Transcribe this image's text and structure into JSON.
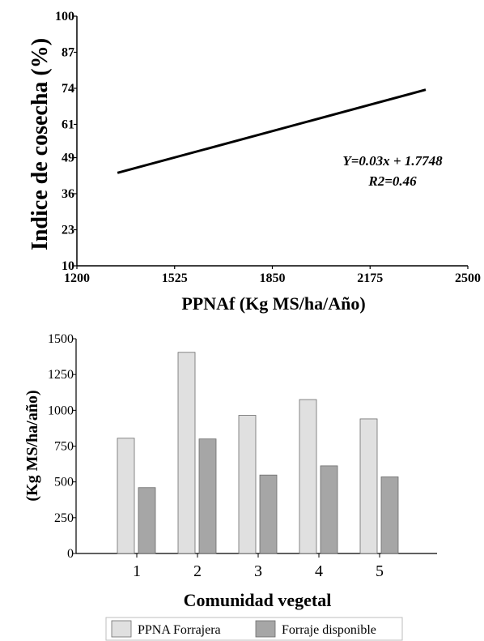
{
  "chart_data": [
    {
      "type": "line",
      "title": "",
      "xlabel": "PPNAf (Kg MS/ha/Año)",
      "ylabel": "Indice de cosecha (%)",
      "xlim": [
        1200,
        2500
      ],
      "ylim": [
        10,
        100
      ],
      "xticks": [
        "1200",
        "1525",
        "1850",
        "2175",
        "2500"
      ],
      "yticks": [
        "100",
        "87",
        "74",
        "61",
        "49",
        "36",
        "23",
        "10"
      ],
      "series": [
        {
          "x": [
            1335,
            2360
          ],
          "y": [
            43.5,
            73.5
          ]
        }
      ],
      "annotations": [
        "Y=0.03x + 1.7748",
        "R2=0.46"
      ],
      "grid": false
    },
    {
      "type": "bar",
      "title": "",
      "xlabel": "Comunidad vegetal",
      "ylabel": "(Kg MS/ha/año)",
      "ylim": [
        0,
        1500
      ],
      "yticks": [
        "0",
        "250",
        "500",
        "750",
        "1000",
        "1250",
        "1500"
      ],
      "categories": [
        "1",
        "2",
        "3",
        "4",
        "5"
      ],
      "series": [
        {
          "name": "PPNA Forrajera",
          "color": "#e0e0e0",
          "values": [
            805,
            1405,
            965,
            1075,
            940
          ]
        },
        {
          "name": "Forraje disponible",
          "color": "#a6a6a6",
          "values": [
            460,
            800,
            548,
            612,
            535
          ]
        }
      ],
      "legend": "bottom",
      "grid": false
    }
  ]
}
